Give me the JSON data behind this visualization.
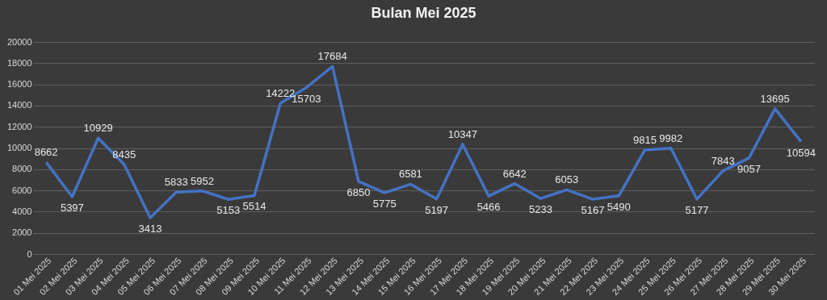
{
  "chart_data": {
    "type": "line",
    "title": "Bulan Mei 2025",
    "categories": [
      "01 Mei 2025",
      "02 Mei 2025",
      "03 Mei 2025",
      "04 Mei 2025",
      "05 Mei 2025",
      "06 Mei 2025",
      "07 Mei 2025",
      "08 Mei 2025",
      "09 Mei 2025",
      "10 Mei 2025",
      "11 Mei 2025",
      "12 Mei 2025",
      "13 Mei 2025",
      "14 Mei 2025",
      "15 Mei 2025",
      "16 Mei 2025",
      "17 Mei 2025",
      "18 Mei 2025",
      "19 Mei 2025",
      "20 Mei 2025",
      "21 Mei 2025",
      "22 Mei 2025",
      "23 Mei 2025",
      "24 Mei 2025",
      "25 Mei 2025",
      "26 Mei 2025",
      "27 Mei 2025",
      "28 Mei 2025",
      "29 Mei 2025",
      "30 Mei 2025"
    ],
    "series": [
      {
        "color": "#4472c4",
        "values": [
          8662,
          5397,
          10929,
          8435,
          3413,
          5833,
          5952,
          5153,
          5514,
          14222,
          15703,
          17684,
          6850,
          5775,
          6581,
          5197,
          10347,
          5466,
          6642,
          5233,
          6053,
          5167,
          5490,
          9815,
          9982,
          5177,
          7843,
          9057,
          13695,
          10594
        ]
      }
    ],
    "ylim": [
      0,
      20000
    ],
    "yticks": [
      0,
      2000,
      4000,
      6000,
      8000,
      10000,
      12000,
      14000,
      16000,
      18000,
      20000
    ],
    "grid": "y",
    "data_labels": true,
    "legend": false,
    "marker": "none",
    "line_style": "solid"
  }
}
